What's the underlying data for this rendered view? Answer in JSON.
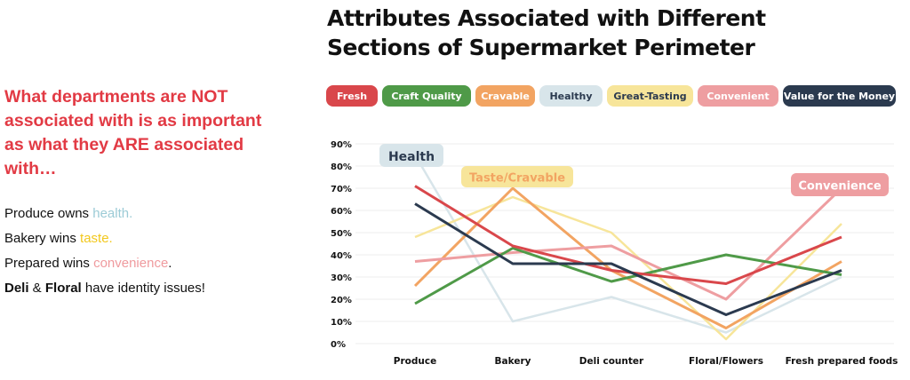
{
  "left": {
    "headline": "What departments are NOT associated with is as important as what they ARE associated with…",
    "bullets": [
      {
        "pre": "Produce owns ",
        "hl": "health.",
        "post": "",
        "color": "#9ccbd6"
      },
      {
        "pre": "Bakery wins ",
        "hl": "taste.",
        "post": "",
        "color": "#f2c81e"
      },
      {
        "pre": "Prepared wins ",
        "hl": "convenience",
        "post": ".",
        "color": "#ef9a9e"
      },
      {
        "bold1": "Deli",
        "mid": " & ",
        "bold2": "Floral",
        "post": " have identity issues!"
      }
    ]
  },
  "chart_data": {
    "type": "line",
    "title": "Attributes Associated with Different Sections of Supermarket Perimeter",
    "title_lines": [
      "Attributes Associated with Different",
      "Sections of Supermarket Perimeter"
    ],
    "categories": [
      "Produce",
      "Bakery",
      "Deli counter",
      "Floral/Flowers",
      "Fresh prepared foods"
    ],
    "ylim": [
      0,
      90
    ],
    "yticks": [
      "0%",
      "10%",
      "20%",
      "30%",
      "40%",
      "50%",
      "60%",
      "70%",
      "80%",
      "90%"
    ],
    "grid": true,
    "legend_placement": "top",
    "series": [
      {
        "name": "Fresh",
        "color": "#d9474b",
        "text": "#ffffff",
        "values": [
          71,
          44,
          33,
          27,
          48
        ]
      },
      {
        "name": "Craft Quality",
        "color": "#4f9a48",
        "text": "#ffffff",
        "values": [
          18,
          43,
          28,
          40,
          31
        ]
      },
      {
        "name": "Cravable",
        "color": "#f2a462",
        "text": "#ffffff",
        "values": [
          26,
          70,
          33,
          7,
          37
        ]
      },
      {
        "name": "Healthy",
        "color": "#d8e5ea",
        "text": "#2b3a4f",
        "values": [
          85,
          10,
          21,
          5,
          30
        ]
      },
      {
        "name": "Great-Tasting",
        "color": "#f7e59a",
        "text": "#2b3a4f",
        "values": [
          48,
          66,
          50,
          2,
          54
        ]
      },
      {
        "name": "Convenient",
        "color": "#ee9ea1",
        "text": "#ffffff",
        "values": [
          37,
          41,
          44,
          20,
          70
        ]
      },
      {
        "name": "Value for the Money",
        "color": "#2b3a4f",
        "text": "#ffffff",
        "values": [
          63,
          36,
          36,
          13,
          33
        ]
      }
    ],
    "annotations": [
      {
        "text": "Health",
        "bg": "#d8e5ea",
        "fg": "#2b3a4f"
      },
      {
        "text": "Taste/Cravable",
        "bg": "#f7e59a",
        "fg": "#f2a462"
      },
      {
        "text": "Convenience",
        "bg": "#ee9ea1",
        "fg": "#ffffff"
      }
    ]
  }
}
